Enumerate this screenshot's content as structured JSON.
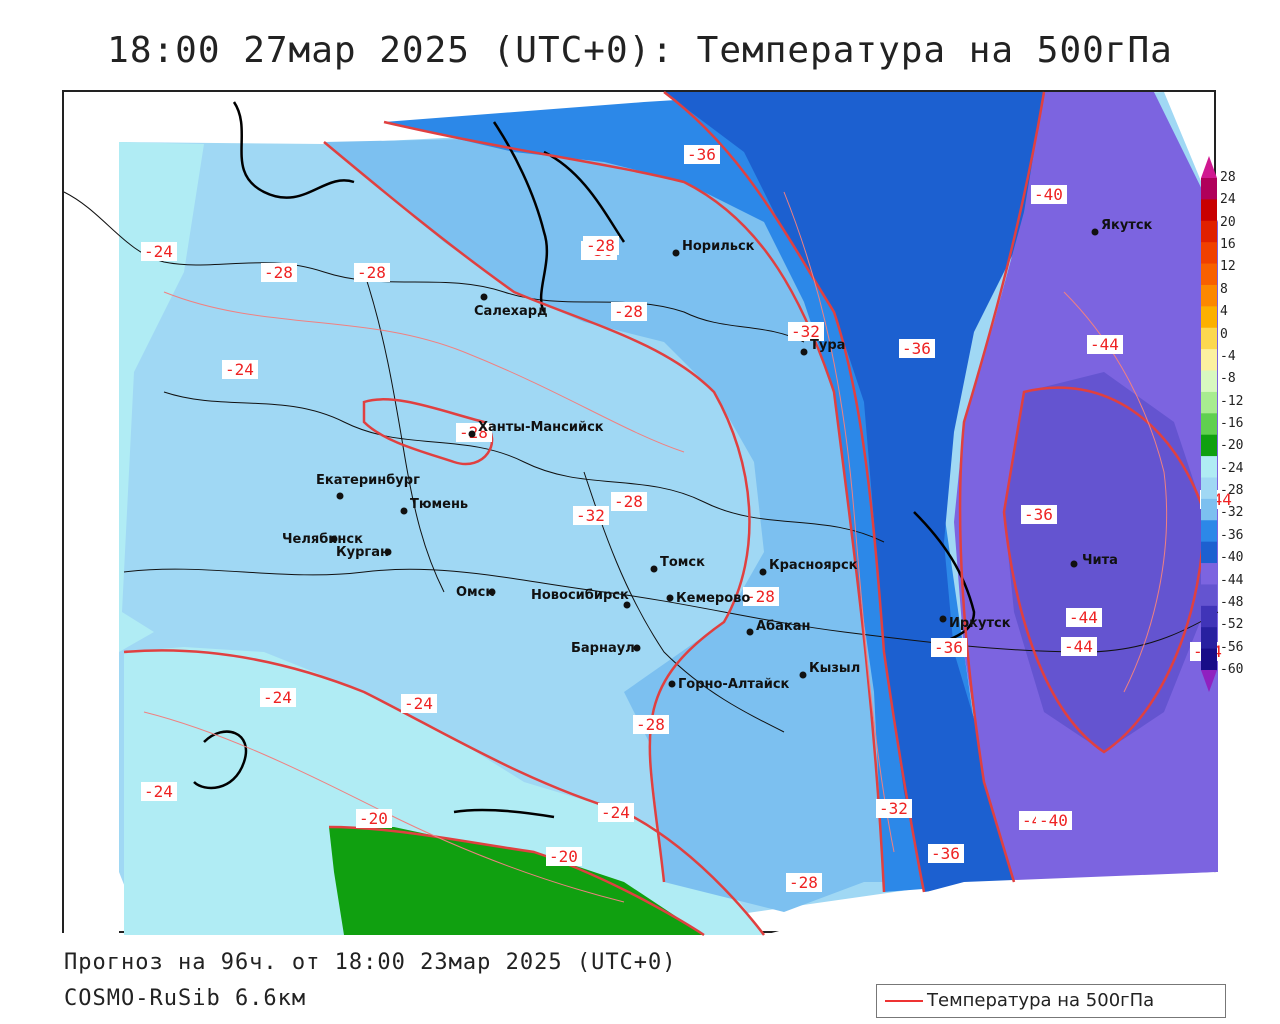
{
  "title": "18:00 27мар 2025 (UTC+0): Температура на 500гПа",
  "footer": {
    "forecast": "Прогноз на 96ч. от 18:00 23мар 2025 (UTC+0)",
    "model": "COSMO-RuSib 6.6км"
  },
  "legend": {
    "label": "Температура на 500гПа",
    "color": "#e03030"
  },
  "colorbar": {
    "ticks": [
      "28",
      "24",
      "20",
      "16",
      "12",
      "8",
      "4",
      "0",
      "-4",
      "-8",
      "-12",
      "-16",
      "-20",
      "-24",
      "-28",
      "-32",
      "-36",
      "-40",
      "-44",
      "-48",
      "-52",
      "-56",
      "-60"
    ],
    "colors": [
      "#b0005a",
      "#c80000",
      "#e02000",
      "#f04000",
      "#f86000",
      "#fc8800",
      "#fcb000",
      "#fcd850",
      "#fcf0a0",
      "#d8f8c0",
      "#a8ec90",
      "#60d050",
      "#10a010",
      "#b0ecf4",
      "#a0d8f4",
      "#7cc0f0",
      "#2c88e8",
      "#1c60d0",
      "#7c64e0",
      "#6454d0",
      "#4034b8",
      "#2820a0",
      "#180c88"
    ],
    "top_arrow_color": "#d01890",
    "bottom_arrow_color": "#9020c0"
  },
  "cities": [
    {
      "name": "Якутск"
    },
    {
      "name": "Норильск"
    },
    {
      "name": "Салехард"
    },
    {
      "name": "Тура"
    },
    {
      "name": "Ханты-Мансийск"
    },
    {
      "name": "Екатеринбург"
    },
    {
      "name": "Тюмень"
    },
    {
      "name": "Челябинск"
    },
    {
      "name": "Курган"
    },
    {
      "name": "Омск"
    },
    {
      "name": "Томск"
    },
    {
      "name": "Красноярск"
    },
    {
      "name": "Новосибирск"
    },
    {
      "name": "Кемерово"
    },
    {
      "name": "Абакан"
    },
    {
      "name": "Иркутск"
    },
    {
      "name": "Барнаул"
    },
    {
      "name": "Кызыл"
    },
    {
      "name": "Горно-Алтайск"
    },
    {
      "name": "Чита"
    }
  ],
  "isotherm_labels": [
    "-24",
    "-28",
    "-24",
    "-36",
    "-40",
    "-28",
    "-32",
    "-36",
    "-28",
    "-36",
    "-44",
    "-32",
    "-36",
    "-28",
    "-44",
    "-28",
    "-28",
    "-44",
    "-44",
    "-36",
    "-24",
    "-24",
    "-28",
    "-24",
    "-24",
    "-20",
    "-20",
    "-32",
    "-40",
    "-36",
    "-28",
    "-40",
    "-44",
    "-28"
  ]
}
